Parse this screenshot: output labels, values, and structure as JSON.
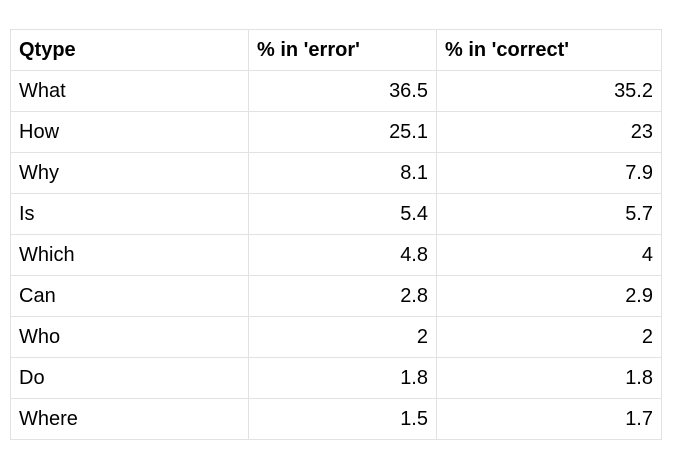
{
  "table": {
    "headers": [
      "Qtype",
      "% in 'error'",
      "% in 'correct'"
    ],
    "rows": [
      {
        "qtype": "What",
        "error": "36.5",
        "correct": "35.2"
      },
      {
        "qtype": "How",
        "error": "25.1",
        "correct": "23"
      },
      {
        "qtype": "Why",
        "error": "8.1",
        "correct": "7.9"
      },
      {
        "qtype": "Is",
        "error": "5.4",
        "correct": "5.7"
      },
      {
        "qtype": "Which",
        "error": "4.8",
        "correct": "4"
      },
      {
        "qtype": "Can",
        "error": "2.8",
        "correct": "2.9"
      },
      {
        "qtype": "Who",
        "error": "2",
        "correct": "2"
      },
      {
        "qtype": "Do",
        "error": "1.8",
        "correct": "1.8"
      },
      {
        "qtype": "Where",
        "error": "1.5",
        "correct": "1.7"
      }
    ]
  }
}
